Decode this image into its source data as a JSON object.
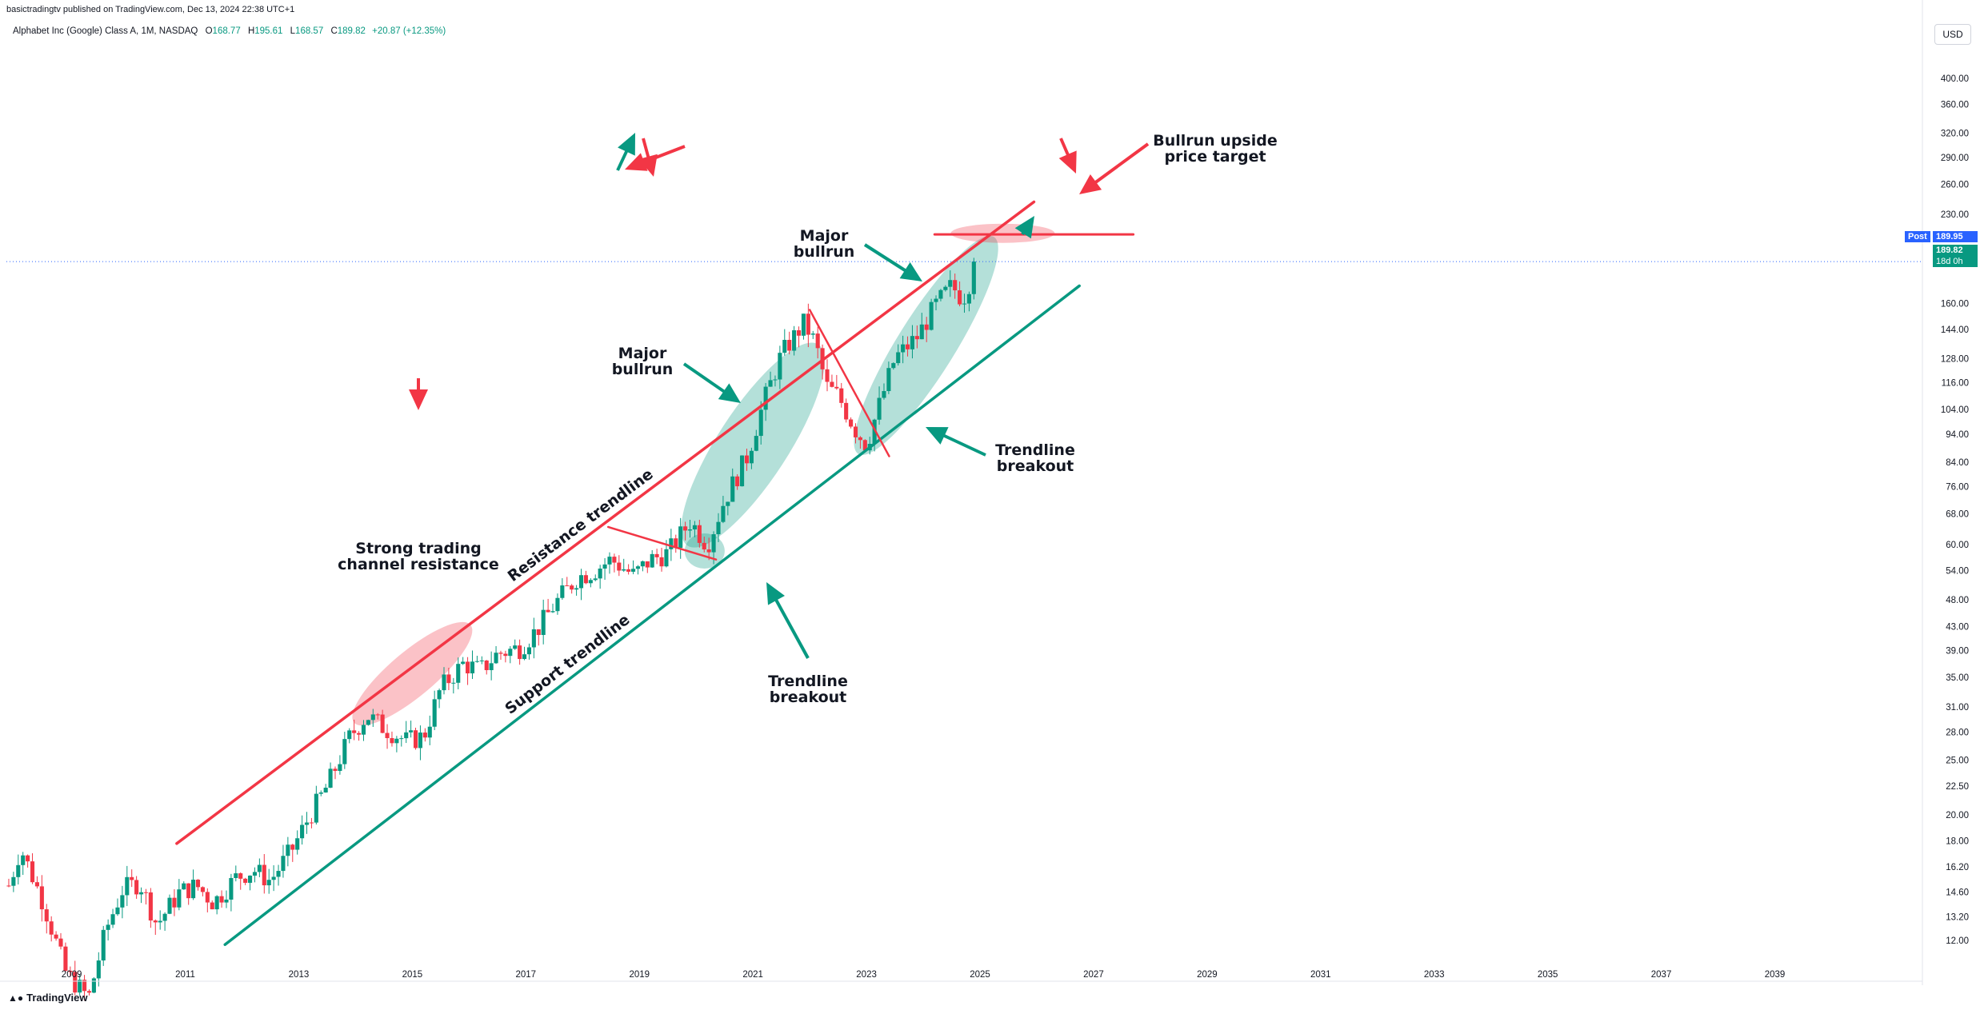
{
  "header": {
    "publisher_line": "basictradingtv published on TradingView.com, Dec 13, 2024 22:38 UTC+1"
  },
  "symbol": {
    "name": "Alphabet Inc (Google) Class A, 1M, NASDAQ",
    "open_label": "O",
    "open": "168.77",
    "high_label": "H",
    "high": "195.61",
    "low_label": "L",
    "low": "168.57",
    "close_label": "C",
    "close": "189.82",
    "change": "+20.87 (+12.35%)"
  },
  "currency": "USD",
  "price_tags": {
    "post_label": "Post",
    "post_price": "189.95",
    "last_price": "189.82",
    "countdown": "18d 0h"
  },
  "footer": {
    "brand": "TradingView"
  },
  "colors": {
    "up": "#089981",
    "down": "#f23645",
    "resistance": "#f23645",
    "support": "#089981",
    "post_tag": "#2962ff",
    "last_tag": "#089981"
  },
  "chart_data": {
    "type": "candlestick",
    "title": "",
    "y_scale": "log",
    "y_ticks": [
      "400.00",
      "360.00",
      "320.00",
      "290.00",
      "260.00",
      "230.00",
      "160.00",
      "144.00",
      "128.00",
      "116.00",
      "104.00",
      "94.00",
      "84.00",
      "76.00",
      "68.00",
      "60.00",
      "54.00",
      "48.00",
      "43.00",
      "39.00",
      "35.00",
      "31.00",
      "28.00",
      "25.00",
      "22.50",
      "20.00",
      "18.00",
      "16.20",
      "14.60",
      "13.20",
      "12.00"
    ],
    "x_ticks": [
      "2009",
      "2011",
      "2013",
      "2015",
      "2017",
      "2019",
      "2021",
      "2023",
      "2025",
      "2027",
      "2029",
      "2031",
      "2033",
      "2035",
      "2037",
      "2039"
    ],
    "xlim": [
      2007.85,
      2041.6
    ],
    "ylim": [
      11.1,
      460
    ],
    "price_anchors": [
      [
        2007.9,
        15.0
      ],
      [
        2008.1,
        17.5
      ],
      [
        2008.5,
        14.0
      ],
      [
        2008.9,
        10.5
      ],
      [
        2009.3,
        9.5
      ],
      [
        2009.6,
        12.5
      ],
      [
        2009.9,
        14.8
      ],
      [
        2010.2,
        15.2
      ],
      [
        2010.5,
        12.8
      ],
      [
        2010.9,
        14.6
      ],
      [
        2011.2,
        15.0
      ],
      [
        2011.5,
        14.0
      ],
      [
        2011.9,
        15.5
      ],
      [
        2012.2,
        16.0
      ],
      [
        2012.5,
        15.3
      ],
      [
        2012.9,
        17.5
      ],
      [
        2013.2,
        20.0
      ],
      [
        2013.5,
        22.5
      ],
      [
        2013.9,
        27.5
      ],
      [
        2014.2,
        30.0
      ],
      [
        2014.5,
        28.5
      ],
      [
        2014.9,
        27.0
      ],
      [
        2015.2,
        27.5
      ],
      [
        2015.5,
        33.5
      ],
      [
        2015.9,
        37.0
      ],
      [
        2016.2,
        36.0
      ],
      [
        2016.5,
        38.5
      ],
      [
        2016.9,
        39.5
      ],
      [
        2017.2,
        42.5
      ],
      [
        2017.5,
        47.0
      ],
      [
        2017.9,
        52.5
      ],
      [
        2018.2,
        54.0
      ],
      [
        2018.5,
        56.5
      ],
      [
        2018.9,
        53.0
      ],
      [
        2019.2,
        56.5
      ],
      [
        2019.5,
        58.0
      ],
      [
        2019.9,
        66.0
      ],
      [
        2020.2,
        60.0
      ],
      [
        2020.5,
        72.0
      ],
      [
        2020.9,
        86.0
      ],
      [
        2021.2,
        108.0
      ],
      [
        2021.5,
        130.0
      ],
      [
        2021.9,
        148.0
      ],
      [
        2022.1,
        136.0
      ],
      [
        2022.3,
        114.0
      ],
      [
        2022.5,
        110.0
      ],
      [
        2022.8,
        96.0
      ],
      [
        2023.0,
        90.0
      ],
      [
        2023.2,
        104.0
      ],
      [
        2023.5,
        128.0
      ],
      [
        2023.9,
        140.0
      ],
      [
        2024.2,
        158.0
      ],
      [
        2024.5,
        172.0
      ],
      [
        2024.7,
        163.0
      ],
      [
        2024.95,
        189.8
      ]
    ],
    "drawings": {
      "resistance_trendline": {
        "label": "Resistance trendline",
        "from": [
          2010.85,
          17.8
        ],
        "to": [
          2025.95,
          242
        ]
      },
      "support_trendline": {
        "label": "Support trendline",
        "from": [
          2011.7,
          11.8
        ],
        "to": [
          2026.75,
          172
        ]
      },
      "price_target_line": {
        "from": [
          2024.2,
          212
        ],
        "to": [
          2027.7,
          212
        ]
      },
      "triangle_upper": {
        "from": [
          2018.45,
          64.5
        ],
        "to": [
          2020.35,
          56.5
        ]
      },
      "break_line": {
        "from": [
          2022.0,
          156
        ],
        "to": [
          2023.4,
          86
        ]
      }
    },
    "annotations": [
      {
        "text": "Bullrun upside price target",
        "lines": [
          "Bullrun upside",
          "price target"
        ]
      },
      {
        "text": "Major bullrun",
        "lines": [
          "Major",
          "bullrun"
        ],
        "id": "upper"
      },
      {
        "text": "Major bullrun",
        "lines": [
          "Major",
          "bullrun"
        ],
        "id": "lower"
      },
      {
        "text": "Trendline breakout",
        "lines": [
          "Trendline",
          "breakout"
        ],
        "id": "right"
      },
      {
        "text": "Trendline breakout",
        "lines": [
          "Trendline",
          "breakout"
        ],
        "id": "bottom"
      },
      {
        "text": "Strong trading channel resistance",
        "lines": [
          "Strong trading",
          "channel resistance"
        ]
      }
    ]
  }
}
